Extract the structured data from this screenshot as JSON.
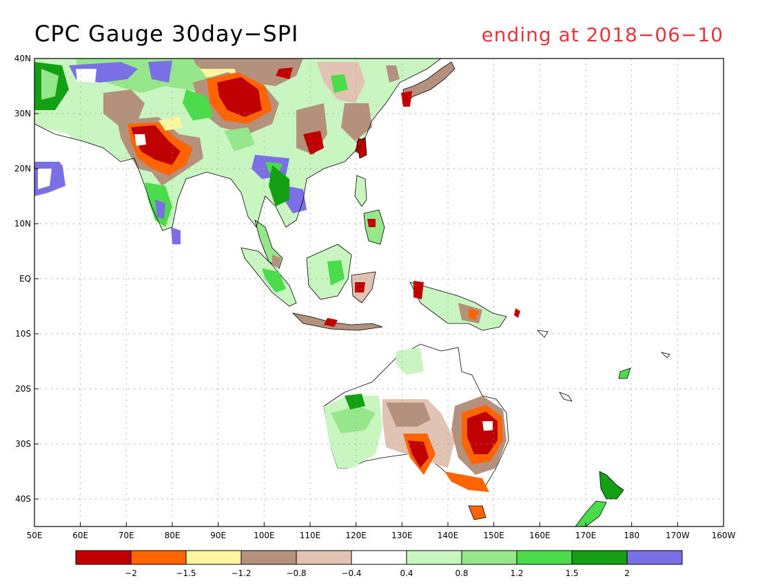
{
  "title": "CPC Gauge 30day−SPI",
  "subtitle": "ending at 2018−06−10",
  "map": {
    "lon_range": [
      50,
      200
    ],
    "lat_range": [
      -45,
      40
    ],
    "lon_ticks": [
      {
        "value": 50,
        "label": "50E"
      },
      {
        "value": 60,
        "label": "60E"
      },
      {
        "value": 70,
        "label": "70E"
      },
      {
        "value": 80,
        "label": "80E"
      },
      {
        "value": 90,
        "label": "90E"
      },
      {
        "value": 100,
        "label": "100E"
      },
      {
        "value": 110,
        "label": "110E"
      },
      {
        "value": 120,
        "label": "120E"
      },
      {
        "value": 130,
        "label": "130E"
      },
      {
        "value": 140,
        "label": "140E"
      },
      {
        "value": 150,
        "label": "150E"
      },
      {
        "value": 160,
        "label": "160E"
      },
      {
        "value": 170,
        "label": "170E"
      },
      {
        "value": 180,
        "label": "180"
      },
      {
        "value": 190,
        "label": "170W"
      },
      {
        "value": 200,
        "label": "160W"
      }
    ],
    "lat_ticks": [
      {
        "value": 40,
        "label": "40N"
      },
      {
        "value": 30,
        "label": "30N"
      },
      {
        "value": 20,
        "label": "20N"
      },
      {
        "value": 10,
        "label": "10N"
      },
      {
        "value": 0,
        "label": "EQ"
      },
      {
        "value": -10,
        "label": "10S"
      },
      {
        "value": -20,
        "label": "20S"
      },
      {
        "value": -30,
        "label": "30S"
      },
      {
        "value": -40,
        "label": "40S"
      }
    ]
  },
  "legend": {
    "colors": [
      "#c00000",
      "#ff6400",
      "#fff5a0",
      "#b4917d",
      "#e1c3b4",
      "#ffffff",
      "#c8f5c0",
      "#96e68c",
      "#4bdc4b",
      "#14a014",
      "#7b6fe6"
    ],
    "labels": [
      "−2",
      "−1.5",
      "−1.2",
      "−0.8",
      "−0.4",
      "0.4",
      "0.8",
      "1.2",
      "1.5",
      "2"
    ]
  },
  "colors": {
    "very_dry": "#c00000",
    "dry": "#ff6400",
    "slightly_dry": "#fff5a0",
    "mod_dry": "#b4917d",
    "light_dry": "#e1c3b4",
    "light_wet": "#c8f5c0",
    "mod_wet": "#96e68c",
    "wet": "#4bdc4b",
    "very_wet": "#14a014",
    "extreme_wet": "#7b6fe6"
  }
}
